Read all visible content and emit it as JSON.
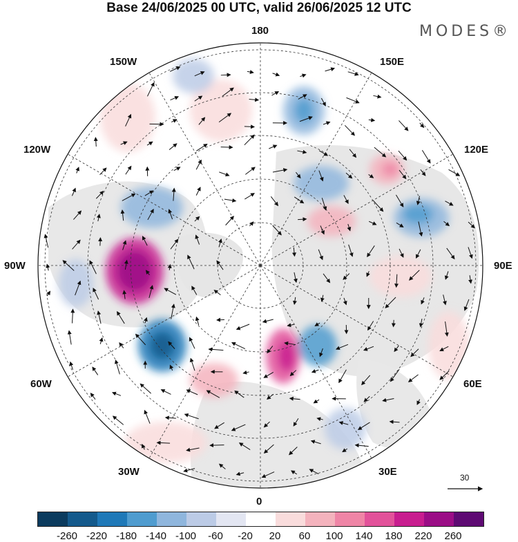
{
  "title": "Base 24/06/2025 00 UTC, valid 26/06/2025 12 UTC",
  "brand": "MODES®",
  "longitude_labels": {
    "top": "180",
    "bottom": "0",
    "left": "90W",
    "right": "90E",
    "upper_left_1": "150W",
    "upper_left_2": "120W",
    "upper_right_1": "150E",
    "upper_right_2": "120E",
    "lower_left_1": "60W",
    "lower_left_2": "30W",
    "lower_right_1": "60E",
    "lower_right_2": "30E"
  },
  "reference_vector": {
    "label": "30"
  },
  "colorbar": {
    "colors": [
      "#0b3b5e",
      "#145a8c",
      "#1f79b8",
      "#4f9ccf",
      "#8fb6dd",
      "#bccbe6",
      "#e3e6f2",
      "#ffffff",
      "#f9dcdc",
      "#f4b3bd",
      "#ef85a6",
      "#e2529a",
      "#c81d8f",
      "#9b0d86",
      "#5e0a73"
    ],
    "ticks": [
      "-260",
      "-220",
      "-180",
      "-140",
      "-100",
      "-60",
      "-20",
      "20",
      "60",
      "100",
      "140",
      "180",
      "220",
      "260"
    ]
  }
}
